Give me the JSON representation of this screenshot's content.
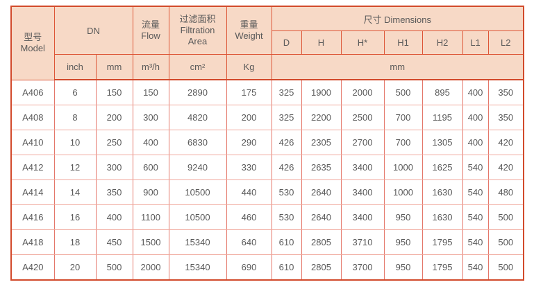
{
  "table": {
    "header": {
      "model_zh": "型号",
      "model_en": "Model",
      "dn": "DN",
      "flow_zh": "流量",
      "flow_en": "Flow",
      "filtration_zh": "过滤面积",
      "filtration_en": "Filtration Area",
      "weight_zh": "重量",
      "weight_en": "Weight",
      "dimensions": "尺寸 Dimensions",
      "dim_cols": [
        "D",
        "H",
        "H*",
        "H1",
        "H2",
        "L1",
        "L2"
      ],
      "unit_inch": "inch",
      "unit_mm": "mm",
      "unit_flow": "m³/h",
      "unit_area": "cm²",
      "unit_weight": "Kg",
      "unit_dims": "mm"
    },
    "columns": [
      "model",
      "dn-inch",
      "dn-mm",
      "flow-m3h",
      "filtration-area-cm2",
      "weight-kg",
      "dim-d",
      "dim-h",
      "dim-h-star",
      "dim-h1",
      "dim-h2",
      "dim-l1",
      "dim-l2"
    ],
    "rows": [
      [
        "A406",
        "6",
        "150",
        "150",
        "2890",
        "175",
        "325",
        "1900",
        "2000",
        "500",
        "895",
        "400",
        "350"
      ],
      [
        "A408",
        "8",
        "200",
        "300",
        "4820",
        "200",
        "325",
        "2200",
        "2500",
        "700",
        "1195",
        "400",
        "350"
      ],
      [
        "A410",
        "10",
        "250",
        "400",
        "6830",
        "290",
        "426",
        "2305",
        "2700",
        "700",
        "1305",
        "400",
        "420"
      ],
      [
        "A412",
        "12",
        "300",
        "600",
        "9240",
        "330",
        "426",
        "2635",
        "3400",
        "1000",
        "1625",
        "540",
        "420"
      ],
      [
        "A414",
        "14",
        "350",
        "900",
        "10500",
        "440",
        "530",
        "2640",
        "3400",
        "1000",
        "1630",
        "540",
        "480"
      ],
      [
        "A416",
        "16",
        "400",
        "1100",
        "10500",
        "460",
        "530",
        "2640",
        "3400",
        "950",
        "1630",
        "540",
        "500"
      ],
      [
        "A418",
        "18",
        "450",
        "1500",
        "15340",
        "640",
        "610",
        "2805",
        "3710",
        "950",
        "1795",
        "540",
        "500"
      ],
      [
        "A420",
        "20",
        "500",
        "2000",
        "15340",
        "690",
        "610",
        "2805",
        "3700",
        "950",
        "1795",
        "540",
        "500"
      ]
    ],
    "colors": {
      "header_bg": "#f7d9c6",
      "outer_border": "#d24a2b",
      "header_border": "#dd5536",
      "cell_border_vertical": "#e4776a",
      "cell_border_horizontal": "#f0a79b",
      "text": "#595959"
    }
  }
}
